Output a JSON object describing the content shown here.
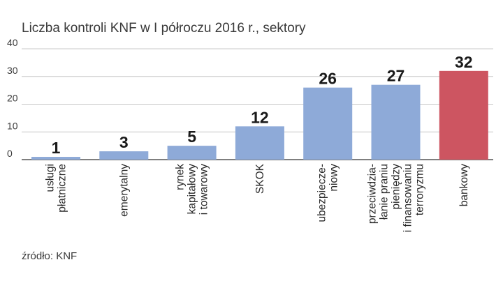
{
  "chart_data": {
    "type": "bar",
    "title": "Liczba kontroli KNF w I półroczu 2016 r., sektory",
    "categories": [
      [
        "usługi",
        "płatniczne"
      ],
      [
        "emerytalny"
      ],
      [
        "rynek",
        "kapitałowy",
        "i towarowy"
      ],
      [
        "SKOK"
      ],
      [
        "ubezpiecze-",
        "niowy"
      ],
      [
        "przeciwdzia-",
        "łanie praniu",
        "pieniędzy",
        "i finansowaniu",
        "terroryzmu"
      ],
      [
        "bankowy"
      ]
    ],
    "values": [
      1,
      3,
      5,
      12,
      26,
      27,
      32
    ],
    "highlight_index": 6,
    "ylim": [
      0,
      40
    ],
    "yticks": [
      0,
      10,
      20,
      30,
      40
    ],
    "grid": true,
    "xlabel": "",
    "ylabel": "",
    "colors": {
      "bar": "#8eaad8",
      "highlight": "#cd5561",
      "grid": "#c8c8c8",
      "axis": "#555555"
    }
  },
  "source": "źródło: KNF"
}
